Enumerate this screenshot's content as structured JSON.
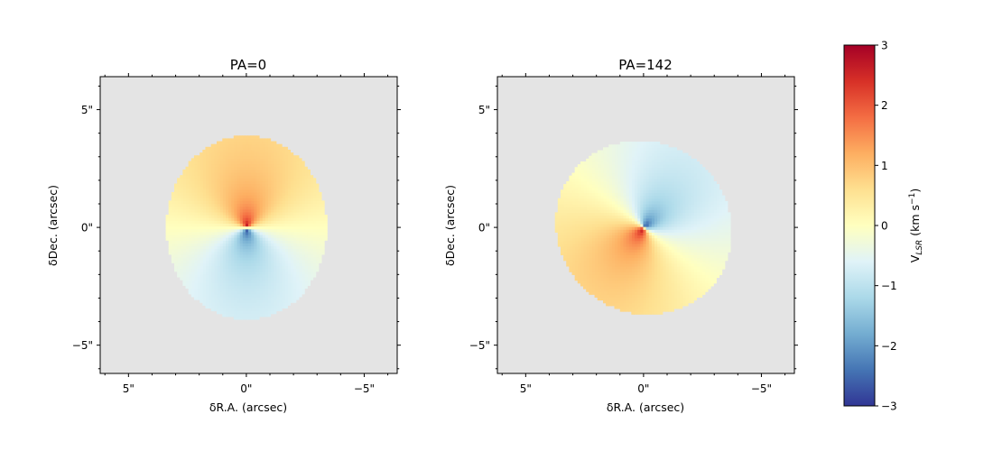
{
  "chart_data": [
    {
      "type": "heatmap",
      "title": "PA=0",
      "position_angle_deg": 0,
      "xlabel": "δR.A. (arcsec)",
      "ylabel": "δDec. (arcsec)",
      "xlim": [
        6.2,
        -6.4
      ],
      "ylim": [
        -6.2,
        6.4
      ],
      "xticks": [
        {
          "value": 5,
          "label": "5\""
        },
        {
          "value": 0,
          "label": "0\""
        },
        {
          "value": -5,
          "label": "−5\""
        }
      ],
      "yticks": [
        {
          "value": 5,
          "label": "5\""
        },
        {
          "value": 0,
          "label": "0\""
        },
        {
          "value": -5,
          "label": "−5\""
        }
      ],
      "disk": {
        "center": [
          0,
          0
        ],
        "semi_major_arcsec": 3.9,
        "semi_minor_arcsec": 3.4,
        "major_axis": "north-south"
      },
      "velocity_peak_kms": 3,
      "background_color": "#e4e4e4"
    },
    {
      "type": "heatmap",
      "title": "PA=142",
      "position_angle_deg": 142,
      "xlabel": "δR.A. (arcsec)",
      "ylabel": "δDec. (arcsec)",
      "xlim": [
        6.2,
        -6.4
      ],
      "ylim": [
        -6.2,
        6.4
      ],
      "xticks": [
        {
          "value": 5,
          "label": "5\""
        },
        {
          "value": 0,
          "label": "0\""
        },
        {
          "value": -5,
          "label": "−5\""
        }
      ],
      "yticks": [
        {
          "value": 5,
          "label": "5\""
        },
        {
          "value": 0,
          "label": "0\""
        },
        {
          "value": -5,
          "label": "−5\""
        }
      ],
      "disk": {
        "center": [
          0,
          0
        ],
        "semi_major_arcsec": 3.8,
        "semi_minor_arcsec": 3.6
      },
      "velocity_peak_kms": 3,
      "background_color": "#e4e4e4"
    }
  ],
  "colorbar": {
    "label": "V",
    "label_sub": "LSR",
    "label_unit_prefix": " (km s",
    "label_unit_sup": "−1",
    "label_unit_suffix": ")",
    "min": -3,
    "max": 3,
    "ticks": [
      {
        "value": 3,
        "label": "3"
      },
      {
        "value": 2,
        "label": "2"
      },
      {
        "value": 1,
        "label": "1"
      },
      {
        "value": 0,
        "label": "0"
      },
      {
        "value": -1,
        "label": "−1"
      },
      {
        "value": -2,
        "label": "−2"
      },
      {
        "value": -3,
        "label": "−3"
      }
    ],
    "colormap": "RdYlBu_r",
    "stops": [
      "#313695",
      "#4575b4",
      "#74add1",
      "#abd9e9",
      "#e0f3f8",
      "#ffffbf",
      "#fee090",
      "#fdae61",
      "#f46d43",
      "#d73027",
      "#a50026"
    ]
  }
}
